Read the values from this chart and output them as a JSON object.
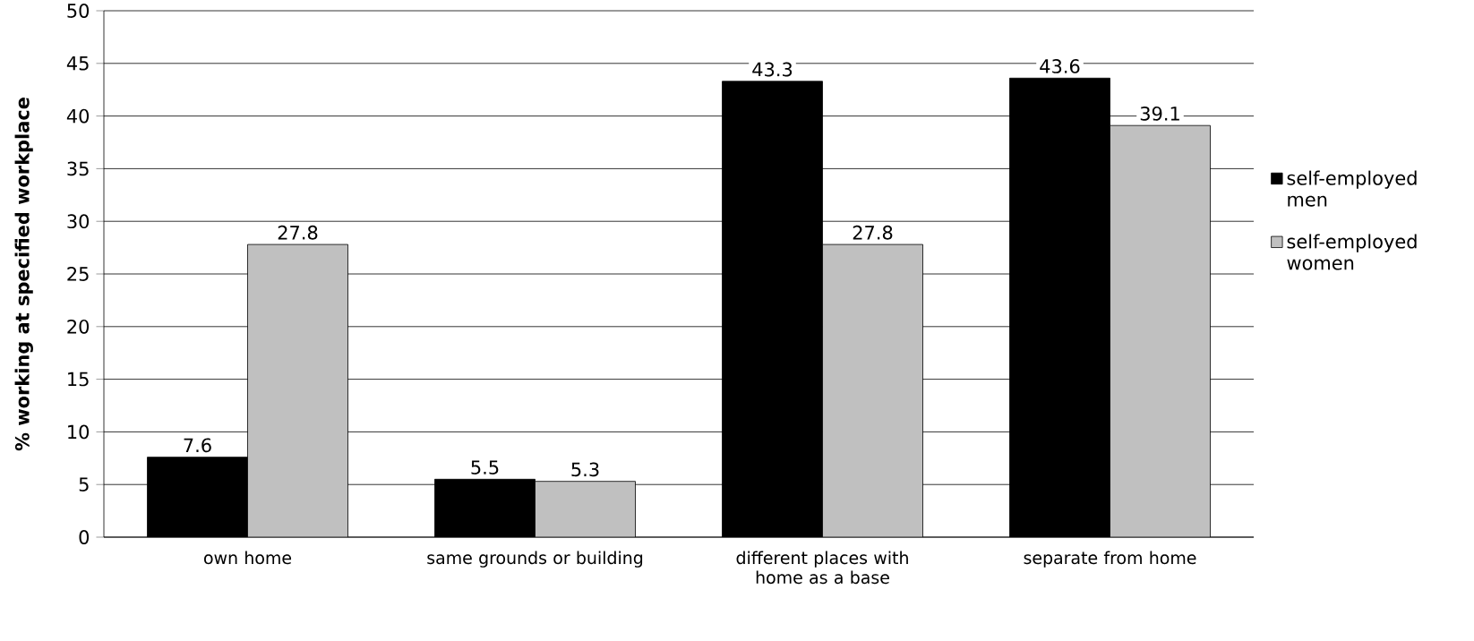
{
  "chart_data": {
    "type": "bar",
    "ylabel": "% working at specified workplace",
    "categories": [
      "own home",
      "same grounds or building",
      "different places with home as a base",
      "separate from home"
    ],
    "series": [
      {
        "name": "self-employed men",
        "color": "#000000",
        "values": [
          7.6,
          5.5,
          43.3,
          43.6
        ]
      },
      {
        "name": "self-employed women",
        "color": "#c0c0c0",
        "values": [
          27.8,
          5.3,
          27.8,
          39.1
        ]
      }
    ],
    "ylim": [
      0,
      50
    ],
    "yticks": [
      0,
      5,
      10,
      15,
      20,
      25,
      30,
      35,
      40,
      45,
      50
    ],
    "grid": "y",
    "legend": "right",
    "data_labels": true
  }
}
